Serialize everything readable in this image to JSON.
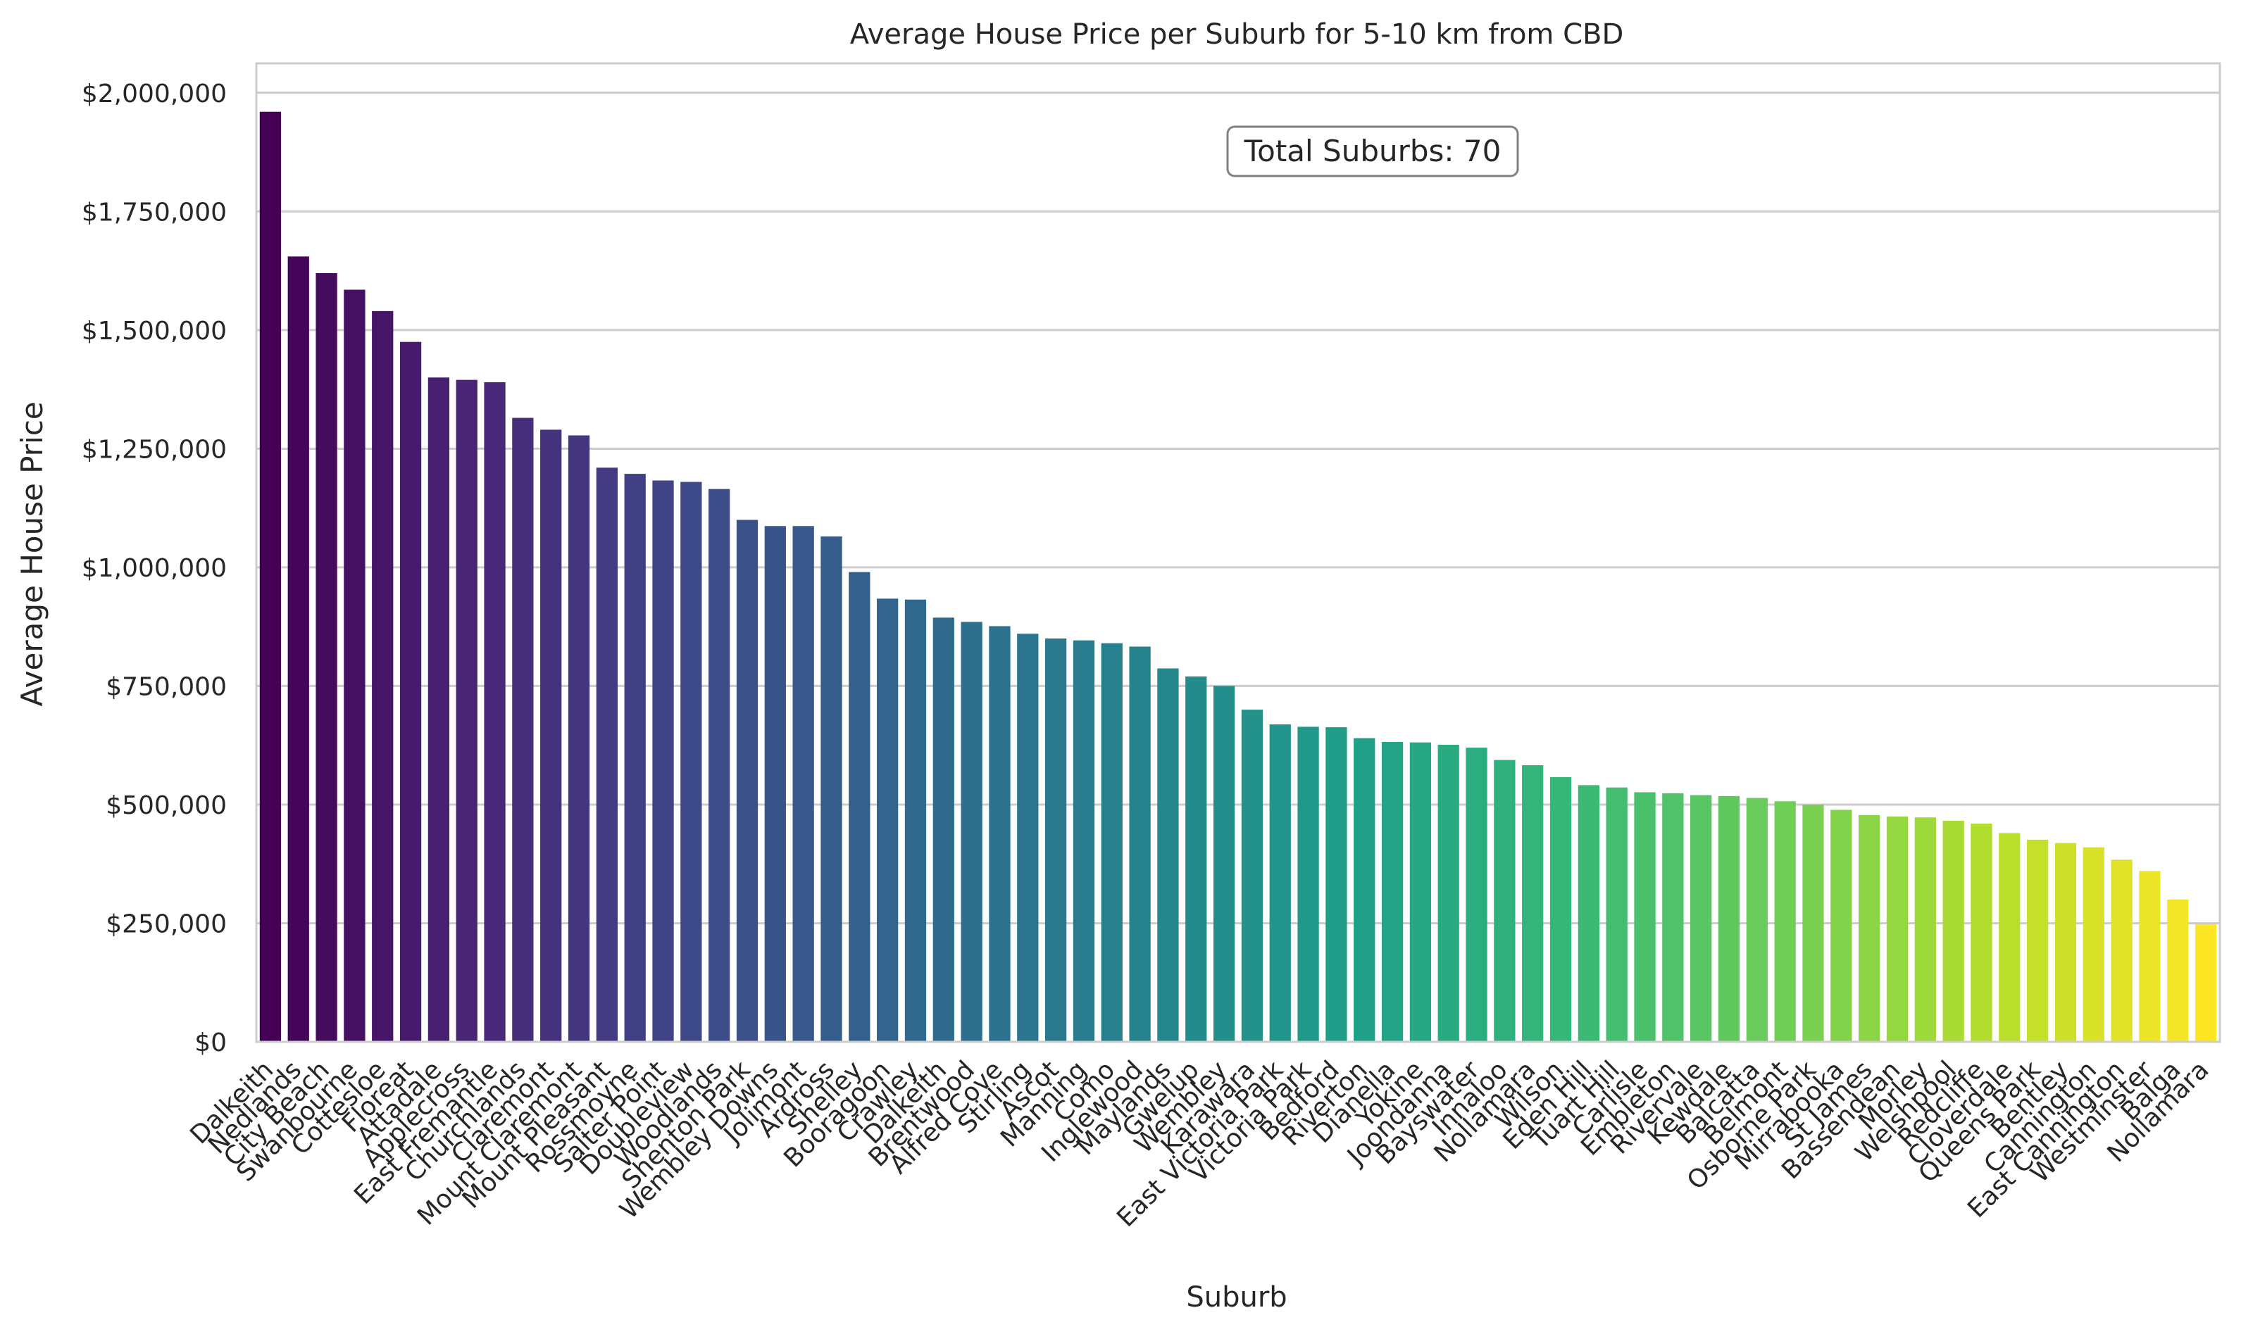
{
  "chart_data": {
    "type": "bar",
    "title": "Average House Price per Suburb for 5-10 km from CBD",
    "xlabel": "Suburb",
    "ylabel": "Average House Price",
    "ylim": [
      0,
      2062000
    ],
    "y_ticks": [
      0,
      250000,
      500000,
      750000,
      1000000,
      1250000,
      1500000,
      1750000,
      2000000
    ],
    "y_tick_labels": [
      "$0",
      "$250,000",
      "$500,000",
      "$750,000",
      "$1,000,000",
      "$1,250,000",
      "$1,500,000",
      "$1,750,000",
      "$2,000,000"
    ],
    "grid": "horizontal",
    "annotation": "Total Suburbs: 70",
    "colormap": "viridis",
    "categories": [
      "Dalkeith",
      "Nedlands",
      "City Beach",
      "Swanbourne",
      "Cottesloe",
      "Floreat",
      "Attadale",
      "Applecross",
      "East Fremantle",
      "Churchlands",
      "Claremont",
      "Mount Claremont",
      "Mount Pleasant",
      "Rossmoyne",
      "Salter Point",
      "Doubleview",
      "Woodlands",
      "Shenton Park",
      "Wembley Downs",
      "Jolimont",
      "Ardross",
      "Shelley",
      "Booragoon",
      "Crawley",
      "Dalkeith",
      "Brentwood",
      "Alfred Cove",
      "Stirling",
      "Ascot",
      "Manning",
      "Como",
      "Inglewood",
      "Maylands",
      "Gwelup",
      "Wembley",
      "Karawara",
      "East Victoria Park",
      "Victoria Park",
      "Bedford",
      "Riverton",
      "Dianella",
      "Yokine",
      "Joondanna",
      "Bayswater",
      "Innaloo",
      "Nollamara",
      "Wilson",
      "Eden Hill",
      "Tuart Hill",
      "Carlisle",
      "Embleton",
      "Rivervale",
      "Kewdale",
      "Balcatta",
      "Belmont",
      "Osborne Park",
      "Mirrabooka",
      "St James",
      "Bassendean",
      "Morley",
      "Welshpool",
      "Redcliffe",
      "Cloverdale",
      "Queens Park",
      "Bentley",
      "Cannington",
      "East Cannington",
      "Westminster",
      "Balga",
      "Nollamara"
    ],
    "values": [
      1960000,
      1655000,
      1620000,
      1585000,
      1540000,
      1475000,
      1400000,
      1395000,
      1390000,
      1315000,
      1290000,
      1278000,
      1210000,
      1197000,
      1183000,
      1180000,
      1165000,
      1100000,
      1087000,
      1087000,
      1065000,
      990000,
      934000,
      932000,
      894000,
      885000,
      876000,
      860000,
      850000,
      846000,
      840000,
      833000,
      787000,
      770000,
      750000,
      700000,
      669000,
      664000,
      663000,
      640000,
      632000,
      631000,
      626000,
      620000,
      594000,
      583000,
      558000,
      541000,
      536000,
      526000,
      524000,
      520000,
      518000,
      514000,
      507000,
      500000,
      489000,
      478000,
      475000,
      473000,
      466000,
      460000,
      440000,
      426000,
      419000,
      410000,
      384000,
      360000,
      300000,
      248000
    ]
  }
}
